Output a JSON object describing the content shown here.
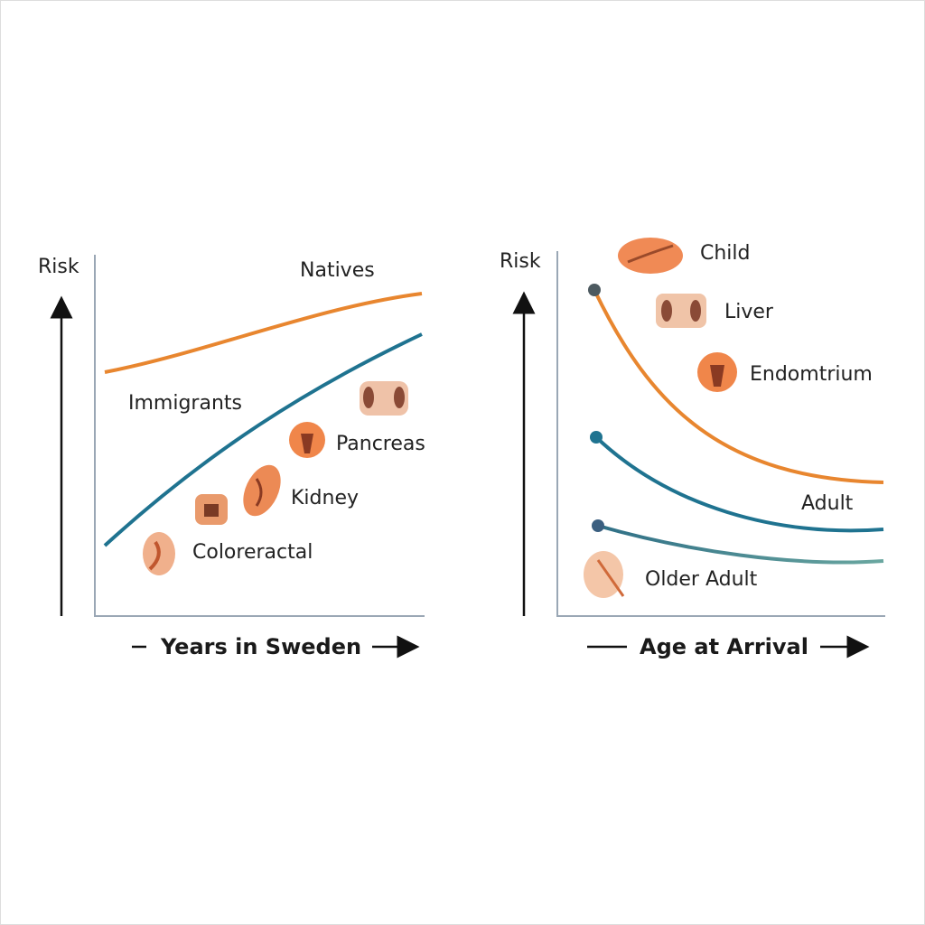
{
  "left_panel": {
    "y_label": "Risk",
    "x_label": "Years in Sweden",
    "series": [
      "Natives",
      "Immigrants"
    ],
    "organs": [
      "Pancreas",
      "Kidney",
      "Coloreractal"
    ]
  },
  "right_panel": {
    "y_label": "Risk",
    "x_label": "Age at Arrival",
    "organs": [
      "Child",
      "Liver",
      "Endomtrium"
    ],
    "groups": [
      "Adult",
      "Older Adult"
    ]
  }
}
